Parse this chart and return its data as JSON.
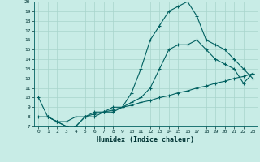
{
  "xlabel": "Humidex (Indice chaleur)",
  "xlim": [
    -0.5,
    23.5
  ],
  "ylim": [
    7,
    20
  ],
  "xticks": [
    0,
    1,
    2,
    3,
    4,
    5,
    6,
    7,
    8,
    9,
    10,
    11,
    12,
    13,
    14,
    15,
    16,
    17,
    18,
    19,
    20,
    21,
    22,
    23
  ],
  "yticks": [
    7,
    8,
    9,
    10,
    11,
    12,
    13,
    14,
    15,
    16,
    17,
    18,
    19,
    20
  ],
  "background_color": "#c8ece6",
  "grid_color": "#a8d4cc",
  "line_color": "#006060",
  "line1_x": [
    0,
    1,
    2,
    3,
    4,
    5,
    6,
    7,
    8,
    9,
    10,
    11,
    12,
    13,
    14,
    15,
    16,
    17,
    18,
    19,
    20,
    21,
    22,
    23
  ],
  "line1_y": [
    10,
    8,
    7.5,
    7,
    7,
    8,
    8,
    8.5,
    9,
    9,
    10.5,
    13,
    16,
    17.5,
    19,
    19.5,
    20,
    18.5,
    16,
    15.5,
    15,
    14,
    13,
    12
  ],
  "line2_x": [
    1,
    2,
    3,
    4,
    5,
    6,
    7,
    8,
    9,
    10,
    11,
    12,
    13,
    14,
    15,
    16,
    17,
    18,
    19,
    20,
    21,
    22,
    23
  ],
  "line2_y": [
    8,
    7.5,
    7,
    7,
    8,
    8.5,
    8.5,
    8.5,
    9,
    9.5,
    10,
    11,
    13,
    15,
    15.5,
    15.5,
    16,
    15,
    14,
    13.5,
    13,
    11.5,
    12.5
  ],
  "line3_x": [
    0,
    1,
    2,
    3,
    4,
    5,
    6,
    7,
    8,
    9,
    10,
    11,
    12,
    13,
    14,
    15,
    16,
    17,
    18,
    19,
    20,
    21,
    22,
    23
  ],
  "line3_y": [
    8,
    8,
    7.5,
    7.5,
    8,
    8,
    8.3,
    8.5,
    8.7,
    9,
    9.2,
    9.5,
    9.7,
    10,
    10.2,
    10.5,
    10.7,
    11,
    11.2,
    11.5,
    11.7,
    12,
    12.2,
    12.5
  ]
}
